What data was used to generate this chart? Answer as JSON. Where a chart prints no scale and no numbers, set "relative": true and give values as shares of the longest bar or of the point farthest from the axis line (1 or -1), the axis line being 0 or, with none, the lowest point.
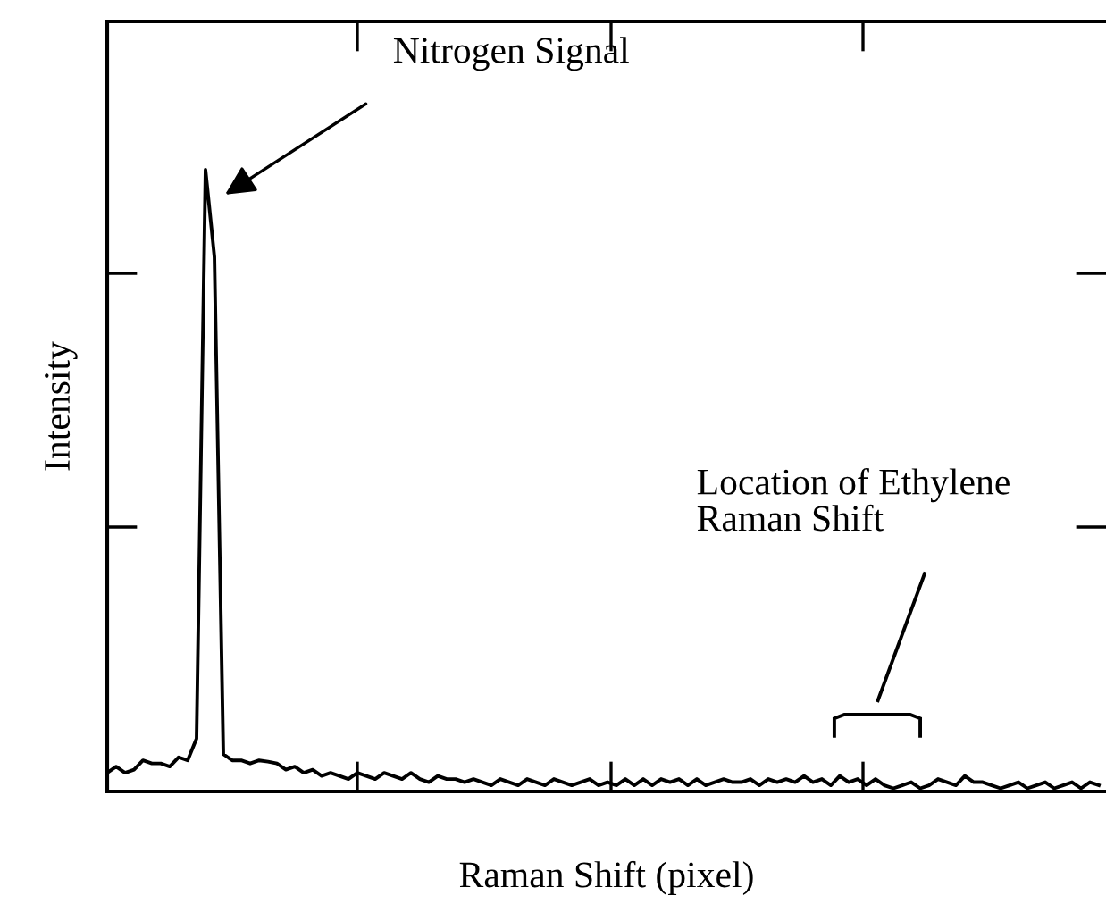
{
  "chart_data": {
    "type": "line",
    "relative": true,
    "xlabel": "Raman Shift (pixel)",
    "ylabel": "Intensity",
    "annotations": [
      "Nitrogen Signal",
      "Location of Ethylene\nRaman Shift"
    ],
    "categories": [
      null,
      null,
      null,
      null,
      null,
      null,
      null,
      null,
      null,
      null,
      null,
      null,
      null,
      null,
      null,
      null,
      null,
      null,
      null,
      null,
      null,
      null,
      null,
      null,
      null,
      null,
      null,
      null,
      null,
      null,
      null,
      null,
      null,
      null,
      null,
      null,
      null,
      null,
      null,
      null,
      null,
      null,
      null,
      null,
      null,
      null,
      null,
      null,
      null,
      null,
      null,
      null,
      null,
      null,
      null,
      null,
      null,
      null,
      null,
      null,
      null,
      null,
      null,
      null,
      null,
      null,
      null,
      null,
      null,
      null,
      null,
      null,
      null,
      null,
      null,
      null,
      null,
      null,
      null,
      null,
      null,
      null,
      null,
      null,
      null,
      null,
      null,
      null,
      null,
      null,
      null,
      null,
      null,
      null,
      null,
      null,
      null,
      null,
      null,
      null,
      null,
      null,
      null,
      null,
      null,
      null,
      null,
      null,
      null,
      null,
      null,
      null
    ],
    "series": [
      {
        "color": "#000000",
        "values": [
          0.03,
          0.04,
          0.03,
          0.035,
          0.05,
          0.045,
          0.045,
          0.04,
          0.055,
          0.05,
          0.085,
          1.0,
          0.86,
          0.06,
          0.05,
          0.05,
          0.045,
          0.05,
          0.048,
          0.045,
          0.035,
          0.04,
          0.03,
          0.035,
          0.025,
          0.03,
          0.025,
          0.02,
          0.03,
          0.025,
          0.02,
          0.03,
          0.025,
          0.02,
          0.03,
          0.02,
          0.015,
          0.025,
          0.02,
          0.02,
          0.015,
          0.02,
          0.015,
          0.01,
          0.02,
          0.015,
          0.01,
          0.02,
          0.015,
          0.01,
          0.02,
          0.015,
          0.01,
          0.015,
          0.02,
          0.01,
          0.015,
          0.01,
          0.02,
          0.01,
          0.02,
          0.01,
          0.02,
          0.015,
          0.02,
          0.01,
          0.02,
          0.01,
          0.015,
          0.02,
          0.015,
          0.015,
          0.02,
          0.01,
          0.02,
          0.015,
          0.02,
          0.015,
          0.025,
          0.015,
          0.02,
          0.01,
          0.025,
          0.015,
          0.02,
          0.01,
          0.02,
          0.01,
          0.005,
          0.01,
          0.015,
          0.005,
          0.01,
          0.02,
          0.015,
          0.01,
          0.025,
          0.015,
          0.015,
          0.01,
          0.005,
          0.01,
          0.015,
          0.005,
          0.01,
          0.015,
          0.005,
          0.01,
          0.015,
          0.005,
          0.015,
          0.01
        ]
      }
    ]
  }
}
